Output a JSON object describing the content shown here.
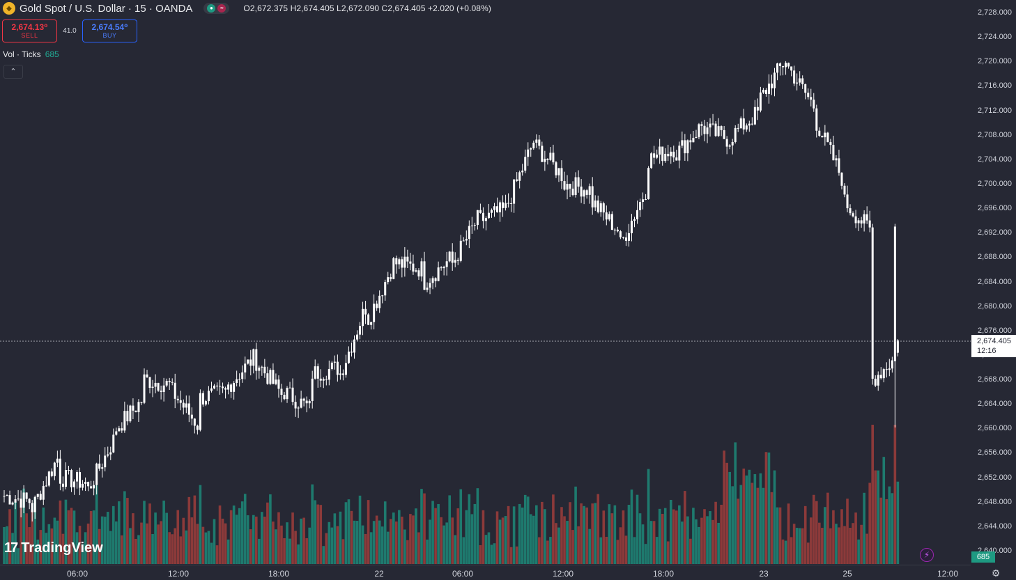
{
  "header": {
    "symbol_title": "Gold Spot / U.S. Dollar · 15 · OANDA",
    "ohlc": "O2,672.375 H2,674.405 L2,672.090 C2,674.405 +2.020 (+0.08%)"
  },
  "trade": {
    "sell_price": "2,674.13⁰",
    "sell_label": "SELL",
    "spread": "41.0",
    "buy_price": "2,674.54⁰",
    "buy_label": "BUY"
  },
  "volume_legend": {
    "label": "Vol · Ticks",
    "value": "685"
  },
  "current_price": {
    "price": "2,674.405",
    "countdown": "12:16"
  },
  "volume_badge": "685",
  "watermark": "TradingView",
  "colors": {
    "background": "#262834",
    "candle": "#ffffff",
    "vol_up": "#1e7a6e",
    "vol_down": "#8c3a3a",
    "accent_sell": "#f23645",
    "accent_buy": "#2962ff"
  },
  "chart_data": {
    "type": "candlestick",
    "symbol": "XAUUSD",
    "interval": "15",
    "price_ticks": [
      "2,728.000",
      "2,724.000",
      "2,720.000",
      "2,716.000",
      "2,712.000",
      "2,708.000",
      "2,704.000",
      "2,700.000",
      "2,696.000",
      "2,692.000",
      "2,688.000",
      "2,684.000",
      "2,680.000",
      "2,676.000",
      "2,672.000",
      "2,668.000",
      "2,664.000",
      "2,660.000",
      "2,656.000",
      "2,652.000",
      "2,648.000",
      "2,644.000",
      "2,640.000"
    ],
    "price_range": [
      2638,
      2729.9
    ],
    "time_ticks": [
      "06:00",
      "12:00",
      "18:00",
      "22",
      "06:00",
      "12:00",
      "18:00",
      "23",
      "25",
      "12:00"
    ],
    "anchors": [
      [
        2651,
        2649
      ],
      [
        2648,
        2647
      ],
      [
        2656,
        2652
      ],
      [
        2651,
        2650
      ],
      [
        2659,
        2660
      ],
      [
        2665,
        2668
      ],
      [
        2667,
        2666
      ],
      [
        2660,
        2665
      ],
      [
        2666,
        2667
      ],
      [
        2672,
        2671
      ],
      [
        2665,
        2666
      ],
      [
        2663,
        2669
      ],
      [
        2670,
        2669
      ],
      [
        2681,
        2678
      ],
      [
        2688,
        2687
      ],
      [
        2686,
        2684
      ],
      [
        2688,
        2687
      ],
      [
        2695,
        2694
      ],
      [
        2696,
        2697
      ],
      [
        2708,
        2706
      ],
      [
        2701,
        2700
      ],
      [
        2699,
        2697
      ],
      [
        2692,
        2690
      ],
      [
        2700,
        2704
      ],
      [
        2706,
        2705
      ],
      [
        2710,
        2709
      ],
      [
        2707,
        2708
      ],
      [
        2712,
        2714
      ],
      [
        2721,
        2719
      ],
      [
        2712,
        2710
      ],
      [
        2700,
        2697
      ],
      [
        2692,
        2668
      ],
      [
        2672.375,
        2674.405
      ]
    ],
    "volume_range": [
      0,
      1400
    ],
    "last": {
      "open": 2672.375,
      "high": 2674.405,
      "low": 2672.09,
      "close": 2674.405,
      "change": "+2.020",
      "change_pct": "+0.08%"
    }
  }
}
